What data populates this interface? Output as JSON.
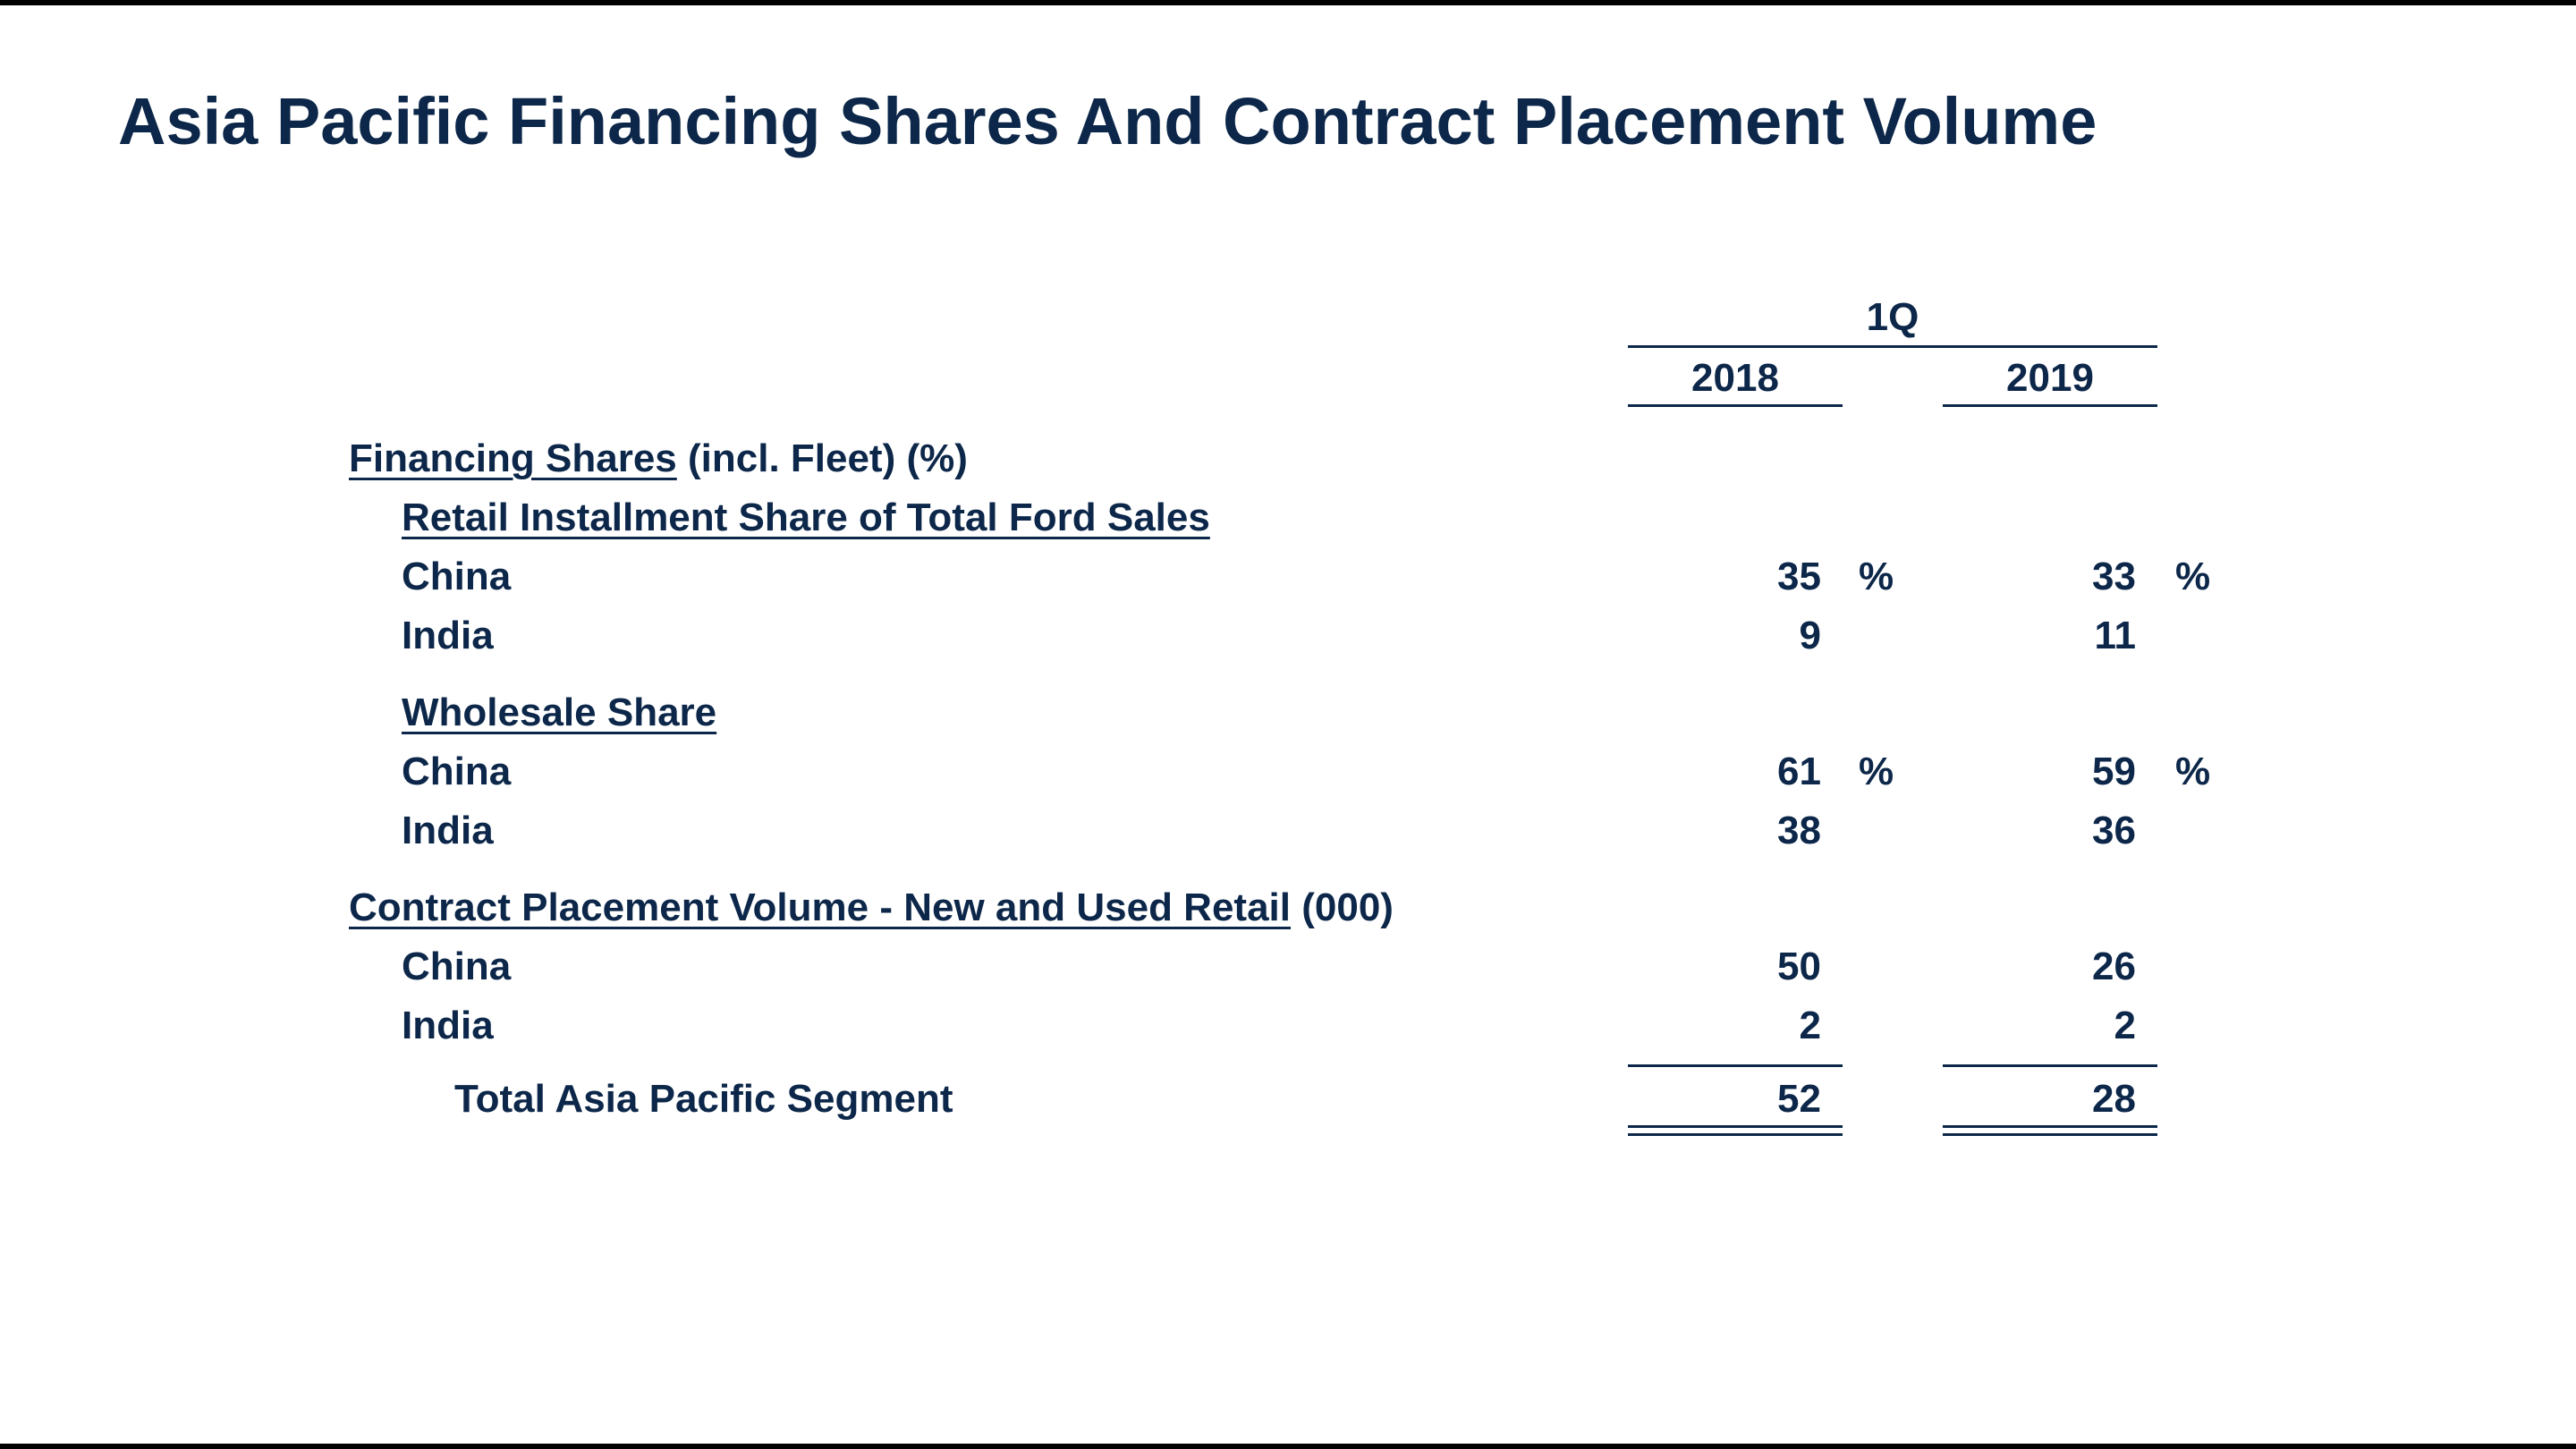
{
  "title": "Asia Pacific Financing Shares And Contract Placement Volume",
  "header": {
    "period": "1Q",
    "years": [
      "2018",
      "2019"
    ]
  },
  "financing": {
    "heading": "Financing Shares",
    "heading_suffix": " (incl. Fleet) (%)",
    "retail": {
      "heading": "Retail Installment Share of Total Ford Sales",
      "rows": [
        {
          "label": "China",
          "v2018": "35",
          "u2018": "%",
          "v2019": "33",
          "u2019": "%"
        },
        {
          "label": "India",
          "v2018": "9",
          "u2018": "",
          "v2019": "11",
          "u2019": ""
        }
      ]
    },
    "wholesale": {
      "heading": "Wholesale Share",
      "rows": [
        {
          "label": "China",
          "v2018": "61",
          "u2018": "%",
          "v2019": "59",
          "u2019": "%"
        },
        {
          "label": "India",
          "v2018": "38",
          "u2018": "",
          "v2019": "36",
          "u2019": ""
        }
      ]
    }
  },
  "contract": {
    "heading": "Contract Placement Volume - New and Used Retail",
    "heading_suffix": " (000)",
    "rows": [
      {
        "label": "China",
        "v2018": "50",
        "v2019": "26"
      },
      {
        "label": "India",
        "v2018": "2",
        "v2019": "2"
      }
    ],
    "total": {
      "label": "Total Asia Pacific Segment",
      "v2018": "52",
      "v2019": "28"
    }
  }
}
